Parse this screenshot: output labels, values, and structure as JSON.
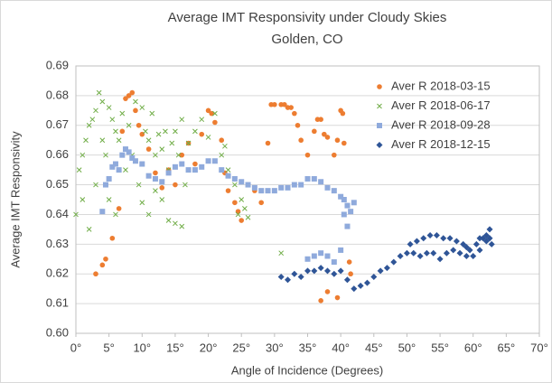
{
  "chart_data": {
    "type": "scatter",
    "title": "Average IMT Responsivity under Cloudy Skies",
    "subtitle": "Golden, CO",
    "x_label": "Angle of Incidence (Degrees)",
    "y_label": "Average IMT Responsivity",
    "xlim": [
      0,
      70
    ],
    "ylim": [
      0.6,
      0.69
    ],
    "xticks": [
      {
        "value": 0,
        "label": "0°"
      },
      {
        "value": 5,
        "label": "5°"
      },
      {
        "value": 10,
        "label": "10°"
      },
      {
        "value": 15,
        "label": "15°"
      },
      {
        "value": 20,
        "label": "20°"
      },
      {
        "value": 25,
        "label": "25°"
      },
      {
        "value": 30,
        "label": "30°"
      },
      {
        "value": 35,
        "label": "35°"
      },
      {
        "value": 40,
        "label": "40°"
      },
      {
        "value": 45,
        "label": "45°"
      },
      {
        "value": 50,
        "label": "50°"
      },
      {
        "value": 55,
        "label": "55°"
      },
      {
        "value": 60,
        "label": "60°"
      },
      {
        "value": 65,
        "label": "65°"
      },
      {
        "value": 70,
        "label": "70°"
      }
    ],
    "yticks": [
      {
        "value": 0.6,
        "label": "0.60"
      },
      0.61,
      0.62,
      0.63,
      0.64,
      0.65,
      0.66,
      0.67,
      0.68,
      0.69
    ],
    "grid": true,
    "legend": "upper right",
    "series": [
      {
        "name": "Aver R 2018-03-15",
        "color": "#ED7D31",
        "marker": "circle",
        "x": [
          3,
          4,
          4.5,
          5.5,
          6.5,
          7,
          7.5,
          8,
          8.5,
          9,
          9.5,
          10,
          11,
          12,
          13,
          14,
          15,
          16,
          17,
          18,
          19,
          20,
          20.5,
          21,
          22,
          22.5,
          23,
          24,
          24.5,
          25,
          26,
          27,
          28,
          29,
          29.5,
          30,
          31,
          31.5,
          32,
          32.5,
          33,
          33.5,
          34,
          35,
          36,
          36.5,
          37,
          37.5,
          38,
          39,
          39.5,
          40,
          40.3,
          40.5,
          41,
          41.3,
          41.5,
          37,
          38,
          39.5
        ],
        "values": [
          0.62,
          0.623,
          0.625,
          0.632,
          0.642,
          0.668,
          0.679,
          0.68,
          0.681,
          0.675,
          0.67,
          0.667,
          0.662,
          0.654,
          0.649,
          0.655,
          0.65,
          0.66,
          0.664,
          0.657,
          0.667,
          0.675,
          0.674,
          0.671,
          0.665,
          0.654,
          0.648,
          0.644,
          0.641,
          0.638,
          0.65,
          0.648,
          0.644,
          0.664,
          0.677,
          0.677,
          0.677,
          0.677,
          0.676,
          0.676,
          0.674,
          0.67,
          0.665,
          0.66,
          0.668,
          0.672,
          0.672,
          0.667,
          0.666,
          0.66,
          0.665,
          0.675,
          0.674,
          0.664,
          0.643,
          0.624,
          0.62,
          0.611,
          0.614,
          0.612
        ]
      },
      {
        "name": "Aver R 2018-06-17",
        "color": "#70AD47",
        "marker": "x",
        "x": [
          0,
          0.5,
          1,
          1,
          1.5,
          2,
          2,
          2.5,
          3,
          3,
          3.5,
          4,
          4,
          4.5,
          5,
          5,
          5.5,
          6,
          6,
          6.5,
          7,
          7,
          7.5,
          8,
          8.5,
          9,
          9.5,
          10,
          10,
          10.5,
          11,
          11,
          11.5,
          12,
          12,
          12.5,
          13,
          13,
          13.5,
          14,
          14,
          14.5,
          15,
          15,
          15.5,
          16,
          16,
          16.5,
          17,
          18,
          19,
          20,
          21,
          22,
          22.5,
          23,
          24,
          24.5,
          25,
          25.5,
          26,
          31
        ],
        "values": [
          0.64,
          0.655,
          0.66,
          0.645,
          0.665,
          0.67,
          0.635,
          0.672,
          0.675,
          0.65,
          0.681,
          0.678,
          0.665,
          0.66,
          0.676,
          0.645,
          0.672,
          0.668,
          0.64,
          0.665,
          0.66,
          0.674,
          0.655,
          0.67,
          0.66,
          0.678,
          0.65,
          0.676,
          0.644,
          0.668,
          0.665,
          0.64,
          0.674,
          0.66,
          0.648,
          0.667,
          0.645,
          0.662,
          0.668,
          0.638,
          0.655,
          0.664,
          0.637,
          0.668,
          0.66,
          0.636,
          0.672,
          0.65,
          0.664,
          0.668,
          0.672,
          0.666,
          0.674,
          0.66,
          0.663,
          0.655,
          0.65,
          0.64,
          0.645,
          0.642,
          0.639,
          0.627
        ]
      },
      {
        "name": "Aver R 2018-09-28",
        "color": "#8FAADC",
        "marker": "square",
        "x": [
          4,
          4.5,
          5,
          5.5,
          6,
          6.5,
          7,
          7.5,
          8,
          8.5,
          9,
          10,
          11,
          12,
          13,
          14,
          15,
          16,
          17,
          18,
          19,
          20,
          21,
          22,
          23,
          24,
          25,
          26,
          27,
          28,
          29,
          30,
          31,
          32,
          33,
          34,
          35,
          36,
          37,
          38,
          39,
          40,
          40.5,
          41,
          41.5,
          42,
          35,
          36,
          37,
          38,
          39,
          40,
          40.5,
          41
        ],
        "values": [
          0.641,
          0.65,
          0.652,
          0.656,
          0.657,
          0.655,
          0.66,
          0.662,
          0.661,
          0.659,
          0.658,
          0.657,
          0.653,
          0.652,
          0.651,
          0.654,
          0.656,
          0.657,
          0.655,
          0.655,
          0.656,
          0.658,
          0.658,
          0.655,
          0.653,
          0.652,
          0.651,
          0.65,
          0.649,
          0.648,
          0.648,
          0.648,
          0.649,
          0.649,
          0.65,
          0.65,
          0.652,
          0.652,
          0.651,
          0.649,
          0.648,
          0.646,
          0.645,
          0.643,
          0.641,
          0.644,
          0.625,
          0.626,
          0.627,
          0.626,
          0.624,
          0.628,
          0.64,
          0.636
        ]
      },
      {
        "name": "Aver R 2018-12-15",
        "color": "#2F5597",
        "marker": "diamond",
        "x": [
          31,
          32,
          33,
          34,
          35,
          36,
          37,
          38,
          39,
          40,
          41,
          42,
          43,
          44,
          45,
          46,
          47,
          48,
          49,
          50,
          51,
          52,
          53,
          54,
          55,
          56,
          57,
          58,
          59,
          60,
          61,
          62,
          62.5,
          50.5,
          51.5,
          52.5,
          53.5,
          54.5,
          55.5,
          56.5,
          57.5,
          58.5,
          59,
          59.5,
          60.5,
          61,
          61.5,
          62,
          62.5,
          62.8
        ],
        "values": [
          0.619,
          0.618,
          0.62,
          0.619,
          0.621,
          0.621,
          0.622,
          0.621,
          0.62,
          0.621,
          0.618,
          0.615,
          0.616,
          0.617,
          0.619,
          0.621,
          0.622,
          0.624,
          0.626,
          0.627,
          0.627,
          0.626,
          0.627,
          0.627,
          0.625,
          0.627,
          0.628,
          0.627,
          0.626,
          0.626,
          0.628,
          0.631,
          0.632,
          0.63,
          0.631,
          0.632,
          0.633,
          0.633,
          0.632,
          0.632,
          0.631,
          0.63,
          0.629,
          0.628,
          0.63,
          0.632,
          0.632,
          0.633,
          0.635,
          0.63
        ]
      }
    ]
  }
}
